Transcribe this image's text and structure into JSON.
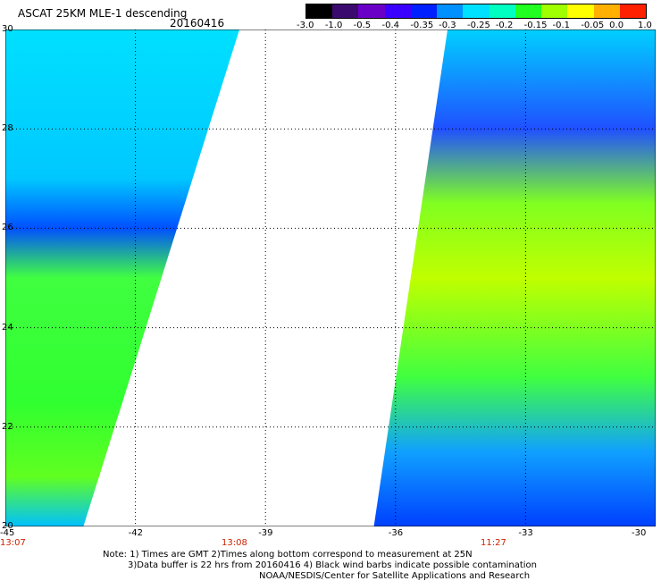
{
  "header": {
    "title": "ASCAT 25KM MLE-1 descending",
    "date": "20160416"
  },
  "colorbar": {
    "labels": [
      "-3.0",
      "-1.0",
      "-0.5",
      "-0.4",
      "-0.35",
      "-0.3",
      "-0.25",
      "-0.2",
      "-0.15",
      "-0.1",
      "-0.05",
      "0.0",
      "1.0"
    ],
    "colors": [
      "#000000",
      "#3b0a6e",
      "#6a00c8",
      "#3a00ff",
      "#0020ff",
      "#0090ff",
      "#00e0ff",
      "#00ffc0",
      "#20ff20",
      "#a0ff00",
      "#ffff00",
      "#ffb000",
      "#ff2000"
    ]
  },
  "map": {
    "lat_labels": [
      "30",
      "28",
      "26",
      "24",
      "22",
      "20"
    ],
    "lon_labels": [
      "-45",
      "-42",
      "-39",
      "-36",
      "-33",
      "-30"
    ],
    "time_labels": [
      "13:07",
      "13:08",
      "11:27"
    ],
    "swaths": [
      {
        "name": "left-swath",
        "lon_min": -45,
        "top_right_lon": -39.6,
        "bottom_right_lon": -43.2
      },
      {
        "name": "right-swath",
        "lon_max": -30,
        "top_left_lon": -34.8,
        "bottom_left_lon": -36.5
      }
    ]
  },
  "notes": [
    "Note: 1) Times are GMT 2)Times along bottom correspond to measurement at 25N",
    "3)Data buffer is 22 hrs from 20160416 4) Black wind barbs indicate possible contamination",
    "NOAA/NESDIS/Center for Satellite Applications and Research"
  ]
}
